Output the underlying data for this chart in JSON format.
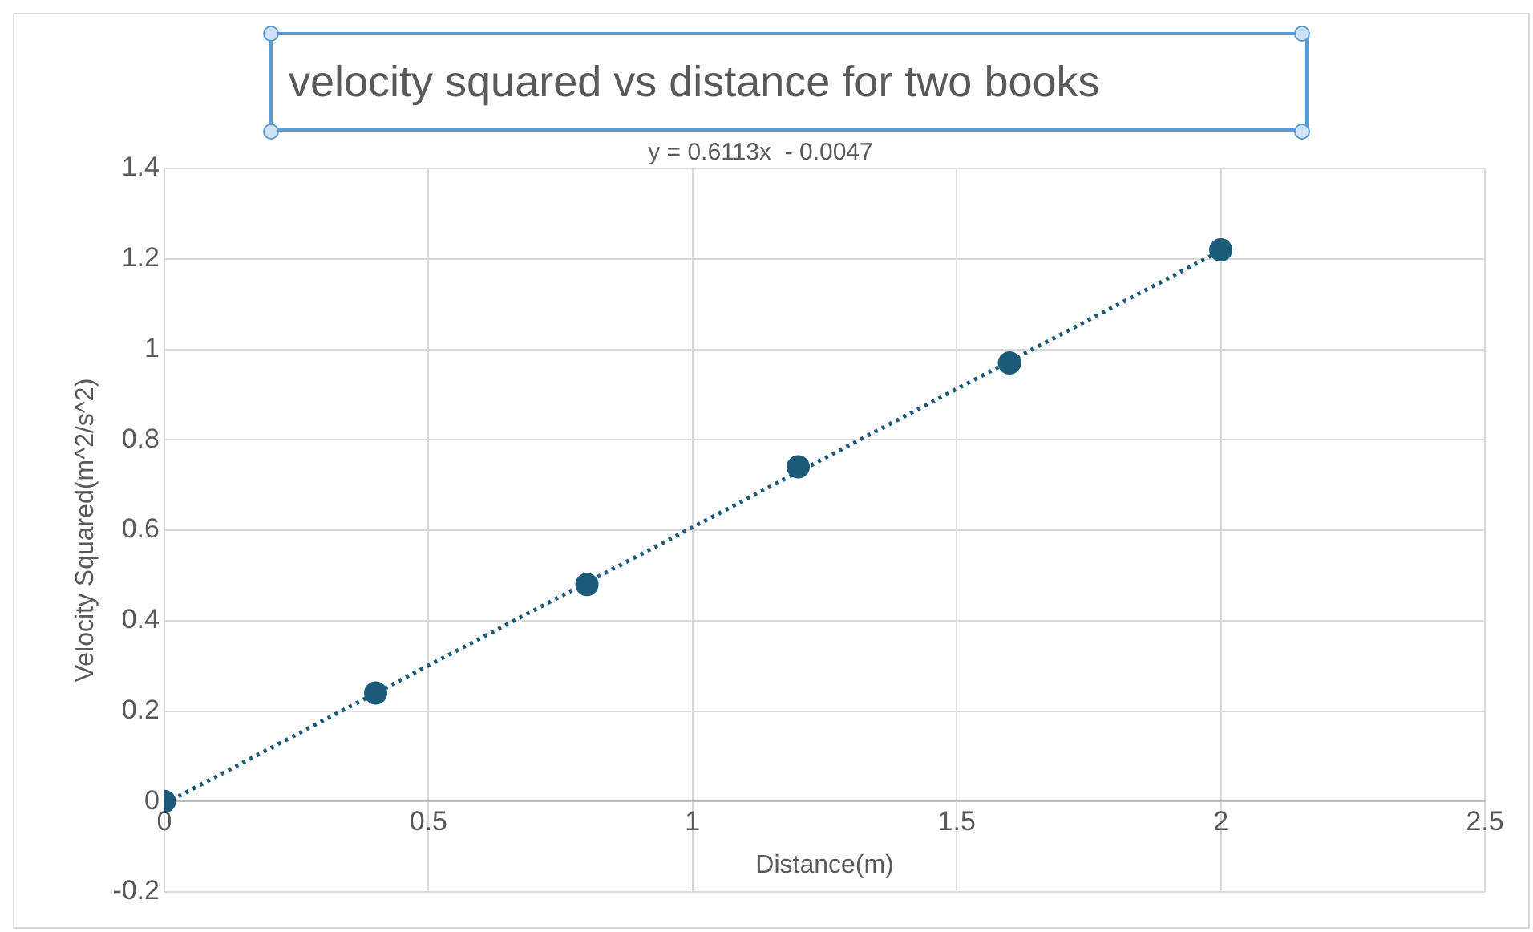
{
  "chart_data": {
    "type": "scatter",
    "title": "velocity squared vs distance for two books",
    "xlabel": "Distance(m)",
    "ylabel": "Velocity Squared(m^2/s^2)",
    "annotations": [
      "y = 0.6113x  - 0.0047"
    ],
    "x": [
      0,
      0.4,
      0.8,
      1.2,
      1.6,
      2
    ],
    "series": [
      {
        "color": "#1b5a78",
        "values": [
          0,
          0.24,
          0.48,
          0.74,
          0.97,
          1.22
        ],
        "marker": "circle"
      },
      {
        "type": "line",
        "color": "#1b5a78",
        "x": [
          0,
          2
        ],
        "values": [
          -0.005,
          1.218
        ],
        "marker": "none",
        "line_style": "dotted"
      }
    ],
    "xlim": [
      0,
      2.5
    ],
    "xticks": [
      0,
      0.5,
      1,
      1.5,
      2,
      2.5
    ],
    "ylim": [
      -0.2,
      1.4
    ],
    "yticks": [
      -0.2,
      0,
      0.2,
      0.4,
      0.6,
      0.8,
      1,
      1.2,
      1.4
    ],
    "grid": true,
    "legend": false
  }
}
